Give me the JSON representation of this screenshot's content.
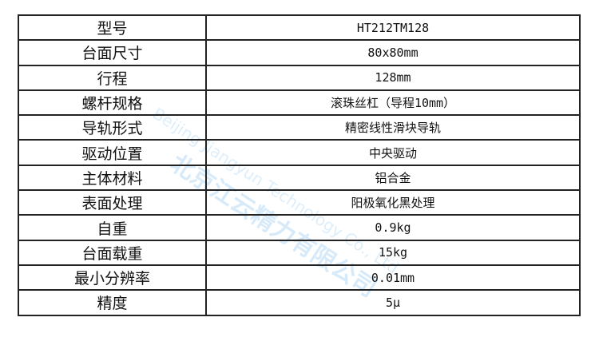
{
  "specs": [
    {
      "label": "型号",
      "value": "HT212TM128"
    },
    {
      "label": "台面尺寸",
      "value": "80x80mm"
    },
    {
      "label": "行程",
      "value": "128mm"
    },
    {
      "label": "螺杆规格",
      "value": "滚珠丝杠（导程10mm）"
    },
    {
      "label": "导轨形式",
      "value": "精密线性滑块导轨"
    },
    {
      "label": "驱动位置",
      "value": "中央驱动"
    },
    {
      "label": "主体材料",
      "value": "铝合金"
    },
    {
      "label": "表面处理",
      "value": "阳极氧化黑处理"
    },
    {
      "label": "自重",
      "value": "0.9kg"
    },
    {
      "label": "台面载重",
      "value": "15kg"
    },
    {
      "label": "最小分辨率",
      "value": "0.01mm"
    },
    {
      "label": "精度",
      "value": "5μ"
    }
  ],
  "watermark": {
    "cn": "北京江云精力有限公司",
    "en": "Beijing Jiangyun Technology Co., Ltd.",
    "color": "#1e8ce6"
  }
}
